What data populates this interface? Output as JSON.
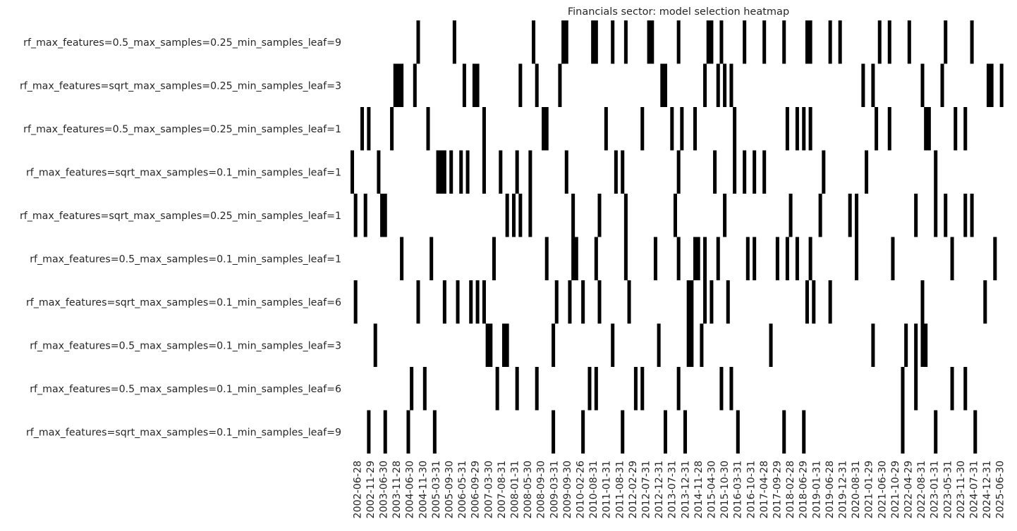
{
  "chart_data": {
    "type": "heatmap",
    "title": "Financials sector: model selection heatmap",
    "xlabel": "",
    "ylabel": "",
    "colorbar": false,
    "colors": {
      "selected": "#000000",
      "not_selected": "#ffffff"
    },
    "x_tick_labels": [
      "2002-06-28",
      "2002-11-29",
      "2003-06-30",
      "2003-11-28",
      "2004-06-30",
      "2004-11-30",
      "2005-03-31",
      "2005-09-30",
      "2006-05-31",
      "2006-09-29",
      "2007-03-30",
      "2007-08-31",
      "2008-01-31",
      "2008-05-30",
      "2008-09-30",
      "2009-03-31",
      "2009-09-30",
      "2010-02-26",
      "2010-08-31",
      "2011-01-31",
      "2011-08-31",
      "2012-02-29",
      "2012-07-31",
      "2012-12-31",
      "2013-07-31",
      "2013-12-31",
      "2014-11-28",
      "2015-04-30",
      "2015-10-30",
      "2016-03-31",
      "2016-10-31",
      "2017-04-28",
      "2017-09-29",
      "2018-02-28",
      "2018-06-29",
      "2019-01-31",
      "2019-06-28",
      "2019-12-31",
      "2020-08-31",
      "2021-01-29",
      "2021-06-30",
      "2021-10-29",
      "2022-04-29",
      "2022-08-31",
      "2023-01-31",
      "2023-05-31",
      "2023-11-30",
      "2024-07-31",
      "2024-12-31",
      "2025-06-30"
    ],
    "n_periods": 199,
    "rows": [
      "rf_max_features=0.5_max_samples=0.25_min_samples_leaf=9",
      "rf_max_features=sqrt_max_samples=0.25_min_samples_leaf=3",
      "rf_max_features=0.5_max_samples=0.25_min_samples_leaf=1",
      "rf_max_features=sqrt_max_samples=0.1_min_samples_leaf=1",
      "rf_max_features=sqrt_max_samples=0.25_min_samples_leaf=1",
      "rf_max_features=0.5_max_samples=0.1_min_samples_leaf=1",
      "rf_max_features=sqrt_max_samples=0.1_min_samples_leaf=6",
      "rf_max_features=0.5_max_samples=0.1_min_samples_leaf=3",
      "rf_max_features=0.5_max_samples=0.1_min_samples_leaf=6",
      "rf_max_features=sqrt_max_samples=0.1_min_samples_leaf=9"
    ],
    "selected_period_indices": [
      [
        20,
        31,
        55,
        64,
        65,
        73,
        74,
        79,
        83,
        90,
        91,
        99,
        108,
        109,
        112,
        119,
        125,
        131,
        138,
        139,
        145,
        148,
        160,
        163,
        169,
        180,
        188
      ],
      [
        13,
        14,
        15,
        19,
        34,
        37,
        38,
        51,
        56,
        63,
        94,
        95,
        107,
        111,
        113,
        115,
        155,
        158,
        173,
        179,
        193,
        194,
        197
      ],
      [
        3,
        5,
        12,
        23,
        40,
        58,
        59,
        77,
        88,
        97,
        100,
        104,
        116,
        132,
        135,
        137,
        139,
        159,
        163,
        174,
        175,
        183,
        186
      ],
      [
        0,
        8,
        26,
        27,
        28,
        30,
        33,
        35,
        40,
        45,
        50,
        54,
        65,
        80,
        82,
        99,
        110,
        116,
        119,
        122,
        125,
        143,
        156,
        177
      ],
      [
        1,
        4,
        9,
        10,
        47,
        49,
        51,
        54,
        67,
        75,
        83,
        98,
        113,
        133,
        142,
        151,
        153,
        171,
        177,
        180,
        186,
        188
      ],
      [
        15,
        24,
        43,
        59,
        67,
        68,
        74,
        83,
        92,
        99,
        104,
        105,
        107,
        111,
        120,
        122,
        129,
        132,
        135,
        139,
        153,
        164,
        182,
        195
      ],
      [
        1,
        20,
        28,
        32,
        36,
        38,
        40,
        62,
        66,
        70,
        75,
        84,
        102,
        103,
        107,
        109,
        114,
        138,
        140,
        145,
        173,
        192
      ],
      [
        7,
        41,
        42,
        46,
        47,
        61,
        79,
        93,
        102,
        103,
        106,
        127,
        158,
        168,
        171,
        173,
        174
      ],
      [
        18,
        22,
        44,
        50,
        56,
        72,
        74,
        86,
        88,
        99,
        112,
        115,
        167,
        171,
        182,
        186
      ],
      [
        5,
        10,
        17,
        25,
        61,
        70,
        82,
        95,
        101,
        117,
        131,
        137,
        167,
        177,
        189
      ]
    ]
  }
}
